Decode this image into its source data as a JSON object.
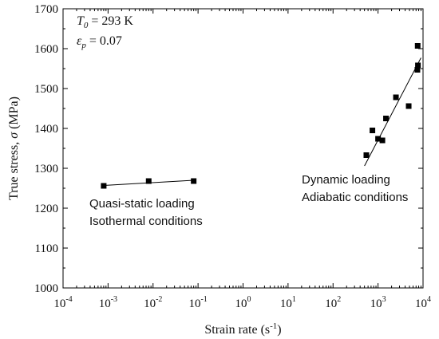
{
  "chart_data": {
    "type": "scatter",
    "xscale": "log",
    "xlim": [
      0.0001,
      10000
    ],
    "ylim": [
      1000,
      1700
    ],
    "xlabel": "Strain rate (s",
    "xlabel_exp": "-1",
    "xlabel_tail": ")",
    "ylabel": "True stress, ",
    "ylabel_symbol": "σ",
    "ylabel_tail": " (MPa)",
    "x_ticks": [
      {
        "base": "10",
        "exp": "-4"
      },
      {
        "base": "10",
        "exp": "-3"
      },
      {
        "base": "10",
        "exp": "-2"
      },
      {
        "base": "10",
        "exp": "-1"
      },
      {
        "base": "10",
        "exp": "0"
      },
      {
        "base": "10",
        "exp": "1"
      },
      {
        "base": "10",
        "exp": "2"
      },
      {
        "base": "10",
        "exp": "3"
      },
      {
        "base": "10",
        "exp": "4"
      }
    ],
    "y_ticks": [
      "1000",
      "1100",
      "1200",
      "1300",
      "1400",
      "1500",
      "1600",
      "1700"
    ],
    "grid": false,
    "series": [
      {
        "points": [
          {
            "x": 0.0008,
            "y": 1256
          },
          {
            "x": 0.008,
            "y": 1268
          },
          {
            "x": 0.08,
            "y": 1268
          },
          {
            "x": 550,
            "y": 1333
          },
          {
            "x": 750,
            "y": 1395
          },
          {
            "x": 1000,
            "y": 1374
          },
          {
            "x": 1250,
            "y": 1370
          },
          {
            "x": 1500,
            "y": 1425
          },
          {
            "x": 2500,
            "y": 1478
          },
          {
            "x": 4800,
            "y": 1456
          },
          {
            "x": 7500,
            "y": 1547
          },
          {
            "x": 7700,
            "y": 1558
          },
          {
            "x": 7600,
            "y": 1607
          }
        ]
      }
    ],
    "fit_lines": [
      {
        "from": {
          "x": 0.0008,
          "y": 1257
        },
        "to": {
          "x": 0.08,
          "y": 1270
        }
      },
      {
        "from": {
          "x": 500,
          "y": 1306
        },
        "to": {
          "x": 9000,
          "y": 1577
        }
      }
    ],
    "annotations": {
      "temp_symbol": "T",
      "temp_sub": "0",
      "temp_value": " = 293 K",
      "strain_symbol": "ε",
      "strain_sub": "p",
      "strain_value": " = 0.07",
      "quasi_line1": "Quasi-static loading",
      "quasi_line2": "Isothermal conditions",
      "dynamic_line1": "Dynamic loading",
      "dynamic_line2": "Adiabatic conditions"
    },
    "colors": {
      "marker": "#000000",
      "line": "#000000",
      "axis": "#000000"
    }
  }
}
